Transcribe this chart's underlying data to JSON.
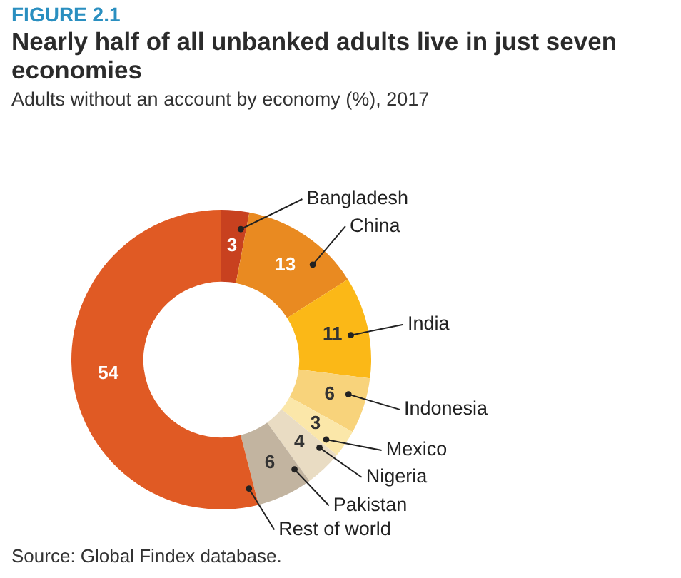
{
  "chart_data": {
    "type": "donut",
    "title": "Nearly half of all unbanked adults live in just seven economies",
    "subtitle": "Adults without an account by economy (%), 2017",
    "annotations": [
      "FIGURE 2.1",
      "Source: Global Findex database."
    ],
    "categories": [
      "Bangladesh",
      "China",
      "India",
      "Indonesia",
      "Mexico",
      "Nigeria",
      "Pakistan",
      "Rest of world"
    ],
    "values": [
      3,
      13,
      11,
      6,
      3,
      4,
      6,
      54
    ],
    "colors": [
      "#c8411f",
      "#e98a21",
      "#fbb817",
      "#f8d37b",
      "#fbe7a9",
      "#e9dcc3",
      "#c2b4a0",
      "#e05a24"
    ],
    "data_labels": true,
    "legend": false
  }
}
